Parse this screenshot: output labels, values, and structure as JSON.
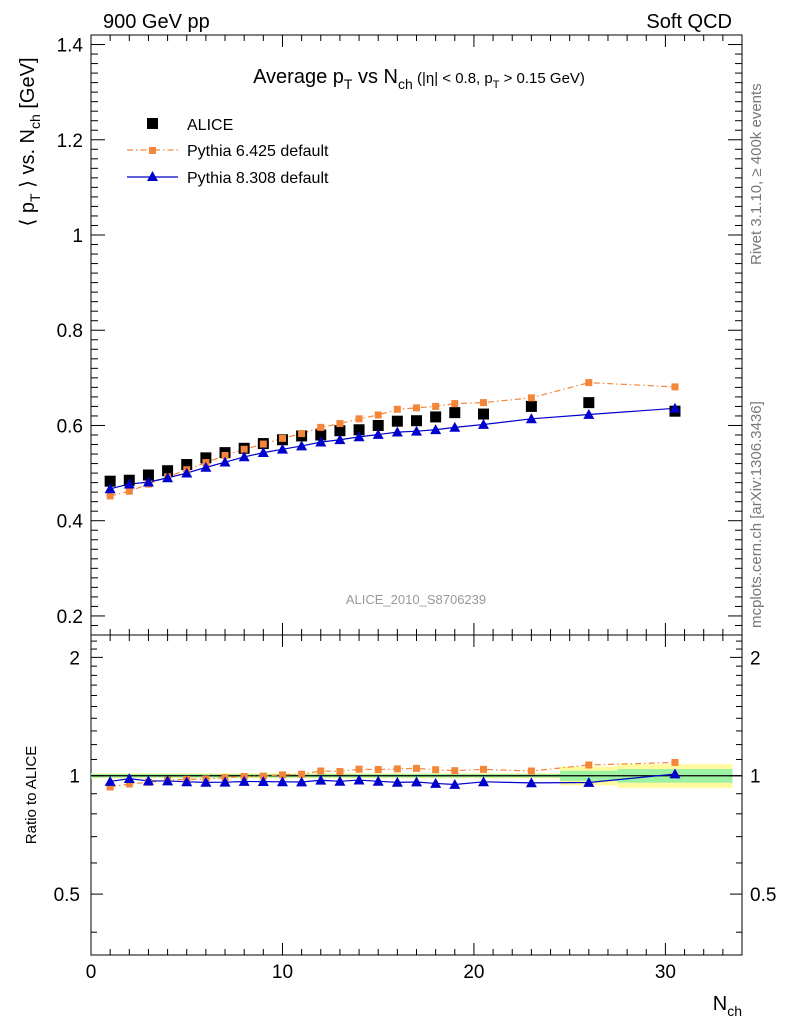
{
  "header": {
    "left": "900 GeV pp",
    "right": "Soft QCD"
  },
  "side_labels": {
    "rivet": "Rivet 3.1.10, ≥ 400k events",
    "mcplots": "mcplots.cern.ch [arXiv:1306.3436]"
  },
  "analysis_tag": "ALICE_2010_S8706239",
  "chart_data": [
    {
      "type": "scatter",
      "panel": "main",
      "title": "Average p_T vs N_ch (|η| < 0.8, p_T > 0.15 GeV)",
      "ylabel": "⟨ p_T ⟩ vs. N_ch [GeV]",
      "xlim": [
        0,
        34
      ],
      "ylim": [
        0.16,
        1.42
      ],
      "y_ticks": [
        0.2,
        0.4,
        0.6,
        0.8,
        1,
        1.2,
        1.4
      ],
      "y_tick_labels": [
        "0.2",
        "0.4",
        "0.6",
        "0.8",
        "1",
        "1.2",
        "1.4"
      ],
      "legend_position": "top-left",
      "series": [
        {
          "name": "ALICE",
          "style": "square-markers",
          "color": "#000000",
          "x": [
            1,
            2,
            3,
            4,
            5,
            6,
            7,
            8,
            9,
            10,
            11,
            12,
            13,
            14,
            15,
            16,
            17,
            18,
            19,
            20.5,
            23,
            26,
            30.5
          ],
          "y": [
            0.483,
            0.485,
            0.496,
            0.505,
            0.518,
            0.532,
            0.543,
            0.552,
            0.562,
            0.57,
            0.578,
            0.58,
            0.589,
            0.591,
            0.6,
            0.609,
            0.61,
            0.618,
            0.627,
            0.624,
            0.64,
            0.648,
            0.63
          ]
        },
        {
          "name": "Pythia 6.425 default",
          "style": "dash-dot-square",
          "color": "#f4863a",
          "x": [
            1,
            2,
            3,
            4,
            5,
            6,
            7,
            8,
            9,
            10,
            11,
            12,
            13,
            14,
            15,
            16,
            17,
            18,
            19,
            20.5,
            23,
            26,
            30.5
          ],
          "y": [
            0.452,
            0.462,
            0.477,
            0.492,
            0.507,
            0.522,
            0.537,
            0.55,
            0.561,
            0.573,
            0.583,
            0.596,
            0.604,
            0.614,
            0.622,
            0.634,
            0.637,
            0.64,
            0.646,
            0.648,
            0.658,
            0.69,
            0.681
          ]
        },
        {
          "name": "Pythia 8.308 default",
          "style": "solid-triangle",
          "color": "#0000cc",
          "x": [
            1,
            2,
            3,
            4,
            5,
            6,
            7,
            8,
            9,
            10,
            11,
            12,
            13,
            14,
            15,
            16,
            17,
            18,
            19,
            20.5,
            23,
            26,
            30.5
          ],
          "y": [
            0.467,
            0.477,
            0.481,
            0.49,
            0.5,
            0.512,
            0.523,
            0.534,
            0.543,
            0.55,
            0.557,
            0.565,
            0.57,
            0.576,
            0.581,
            0.586,
            0.588,
            0.591,
            0.596,
            0.602,
            0.614,
            0.623,
            0.636
          ]
        }
      ]
    },
    {
      "type": "line",
      "panel": "ratio",
      "ylabel": "Ratio to ALICE",
      "xlabel": "N_ch",
      "xlim": [
        0,
        34
      ],
      "ylim": [
        0.35,
        2.28
      ],
      "x_ticks": [
        0,
        10,
        20,
        30
      ],
      "x_tick_labels": [
        "0",
        "10",
        "20",
        "30"
      ],
      "y_ticks": [
        0.5,
        1,
        2
      ],
      "y_tick_labels": [
        "0.5",
        "1",
        "2"
      ],
      "series": [
        {
          "name": "Pythia 6.425 default",
          "color": "#f4863a",
          "x": [
            1,
            2,
            3,
            4,
            5,
            6,
            7,
            8,
            9,
            10,
            11,
            12,
            13,
            14,
            15,
            16,
            17,
            18,
            19,
            20.5,
            23,
            26,
            30.5
          ],
          "y": [
            0.936,
            0.953,
            0.962,
            0.974,
            0.979,
            0.981,
            0.989,
            0.996,
            0.998,
            1.005,
            1.009,
            1.028,
            1.025,
            1.039,
            1.037,
            1.041,
            1.044,
            1.036,
            1.03,
            1.038,
            1.028,
            1.065,
            1.081
          ]
        },
        {
          "name": "Pythia 8.308 default",
          "color": "#0000cc",
          "x": [
            1,
            2,
            3,
            4,
            5,
            6,
            7,
            8,
            9,
            10,
            11,
            12,
            13,
            14,
            15,
            16,
            17,
            18,
            19,
            20.5,
            23,
            26,
            30.5
          ],
          "y": [
            0.967,
            0.983,
            0.97,
            0.97,
            0.965,
            0.962,
            0.963,
            0.967,
            0.966,
            0.965,
            0.964,
            0.974,
            0.968,
            0.975,
            0.968,
            0.962,
            0.964,
            0.956,
            0.95,
            0.965,
            0.959,
            0.961,
            1.01
          ]
        }
      ],
      "uncertainty_bands": [
        {
          "x0": 0,
          "x1": 24.5,
          "inner": [
            0.99,
            1.01
          ],
          "outer": [
            0.985,
            1.015
          ]
        },
        {
          "x0": 24.5,
          "x1": 27.5,
          "inner": [
            0.97,
            1.03
          ],
          "outer": [
            0.945,
            1.055
          ]
        },
        {
          "x0": 27.5,
          "x1": 33.5,
          "inner": [
            0.96,
            1.04
          ],
          "outer": [
            0.93,
            1.07
          ]
        }
      ],
      "band_colors": {
        "inner": "#9cf2a2",
        "outer": "#fffaa0"
      }
    }
  ]
}
